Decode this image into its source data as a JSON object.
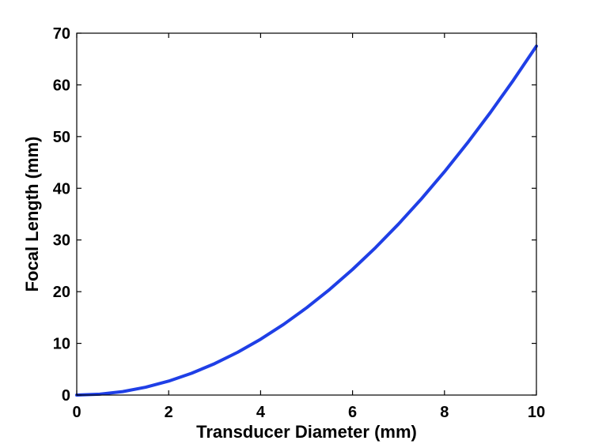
{
  "chart_data": {
    "type": "line",
    "title": "",
    "xlabel": "Transducer Diameter (mm)",
    "ylabel": "Focal Length (mm)",
    "xlim": [
      0,
      10
    ],
    "ylim": [
      0,
      70
    ],
    "xticks": [
      0,
      2,
      4,
      6,
      8,
      10
    ],
    "yticks": [
      0,
      10,
      20,
      30,
      40,
      50,
      60,
      70
    ],
    "x_tick_labels": [
      "0",
      "2",
      "4",
      "6",
      "8",
      "10"
    ],
    "y_tick_labels": [
      "0",
      "10",
      "20",
      "30",
      "40",
      "50",
      "60",
      "70"
    ],
    "grid": false,
    "legend": "none",
    "series": [
      {
        "color": "#1f3fe6",
        "x": [
          0,
          0.5,
          1,
          1.5,
          2,
          2.5,
          3,
          3.5,
          4,
          4.5,
          5,
          5.5,
          6,
          6.5,
          7,
          7.5,
          8,
          8.5,
          9,
          9.5,
          10
        ],
        "y": [
          0,
          0.17,
          0.67,
          1.52,
          2.7,
          4.22,
          6.08,
          8.27,
          10.8,
          13.67,
          16.88,
          20.42,
          24.3,
          28.52,
          33.08,
          37.97,
          43.2,
          48.77,
          54.68,
          60.92,
          67.5
        ]
      }
    ]
  }
}
